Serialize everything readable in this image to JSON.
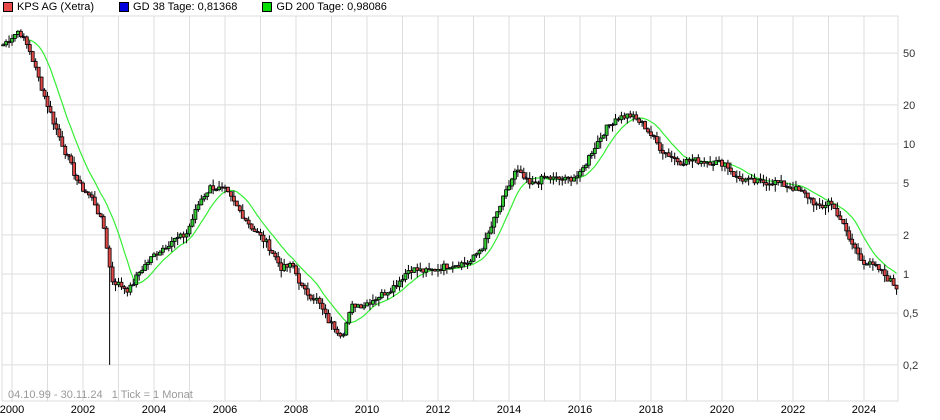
{
  "legend": [
    {
      "label": "KPS AG (Xetra)",
      "color": "#e84a4a"
    },
    {
      "label": "GD 38 Tage: 0,81368",
      "color": "#0000dd"
    },
    {
      "label": "GD 200 Tage: 0,98086",
      "color": "#00dd00"
    }
  ],
  "footer": {
    "range": "04.10.99 - 30.11.24",
    "tick_info": "1 Tick = 1 Monat"
  },
  "colors": {
    "up_candle": "#33cc33",
    "down_candle": "#e04848",
    "ma38": "#3333ee",
    "ma200": "#33ee33",
    "grid": "#dddddd"
  },
  "chart_data": {
    "type": "line",
    "title": "KPS AG (Xetra)",
    "subtitle": "04.10.99 - 30.11.24, 1 Tick = 1 Monat",
    "xlabel": "",
    "ylabel": "",
    "y_scale": "log",
    "ylim": [
      0.16,
      90
    ],
    "y_ticks": [
      50,
      20,
      10,
      5,
      2,
      1,
      0.5,
      0.2
    ],
    "y_tick_labels": [
      "50",
      "20",
      "10",
      "5",
      "2",
      "1",
      "0,5",
      "0,2"
    ],
    "x_ticks": [
      2000,
      2002,
      2004,
      2006,
      2008,
      2010,
      2012,
      2014,
      2016,
      2018,
      2020,
      2022,
      2024
    ],
    "xlim": [
      1999.75,
      2024.92
    ],
    "grid": true,
    "legend_position": "top",
    "series": [
      {
        "name": "KPS AG (Xetra)",
        "kind": "candlestick-monthly"
      },
      {
        "name": "GD 38 Tage",
        "last_value": 0.81368
      },
      {
        "name": "GD 200 Tage",
        "last_value": 0.98086
      }
    ],
    "anchors": {
      "x": [
        1999.75,
        2000.2,
        2000.5,
        2000.9,
        2001.2,
        2001.6,
        2001.9,
        2002.3,
        2002.6,
        2002.8,
        2003.3,
        2003.6,
        2004.0,
        2004.5,
        2004.9,
        2005.3,
        2005.6,
        2006.0,
        2006.4,
        2006.8,
        2007.2,
        2007.6,
        2007.9,
        2008.2,
        2008.6,
        2008.9,
        2009.3,
        2009.6,
        2009.9,
        2010.4,
        2010.8,
        2011.2,
        2011.7,
        2012.3,
        2012.9,
        2013.3,
        2013.7,
        2014.0,
        2014.2,
        2014.6,
        2015.0,
        2015.6,
        2016.0,
        2016.3,
        2016.7,
        2017.0,
        2017.4,
        2017.8,
        2018.3,
        2018.8,
        2019.2,
        2019.7,
        2020.1,
        2020.4,
        2020.9,
        2021.5,
        2022.0,
        2022.4,
        2022.8,
        2023.0,
        2023.3,
        2023.6,
        2024.0,
        2024.4,
        2024.92
      ],
      "close": [
        58,
        75,
        52,
        24,
        14,
        7.5,
        4.8,
        3.7,
        2.2,
        0.9,
        0.75,
        1.05,
        1.4,
        1.8,
        2.0,
        3.7,
        4.7,
        4.4,
        3.1,
        2.2,
        1.7,
        1.1,
        1.17,
        0.75,
        0.63,
        0.44,
        0.34,
        0.58,
        0.58,
        0.69,
        0.82,
        1.1,
        1.04,
        1.17,
        1.23,
        1.7,
        3.1,
        4.8,
        6.3,
        4.8,
        5.5,
        5.3,
        5.8,
        8.5,
        12.8,
        15.8,
        16.7,
        14,
        9,
        7.3,
        7.5,
        7.3,
        7.1,
        5.5,
        5.1,
        5.1,
        4.6,
        4.0,
        3.1,
        3.7,
        2.8,
        1.8,
        1.24,
        1.1,
        0.79
      ]
    },
    "notable": {
      "min_wick_low": 0.2,
      "min_wick_date": 2002.75
    }
  }
}
